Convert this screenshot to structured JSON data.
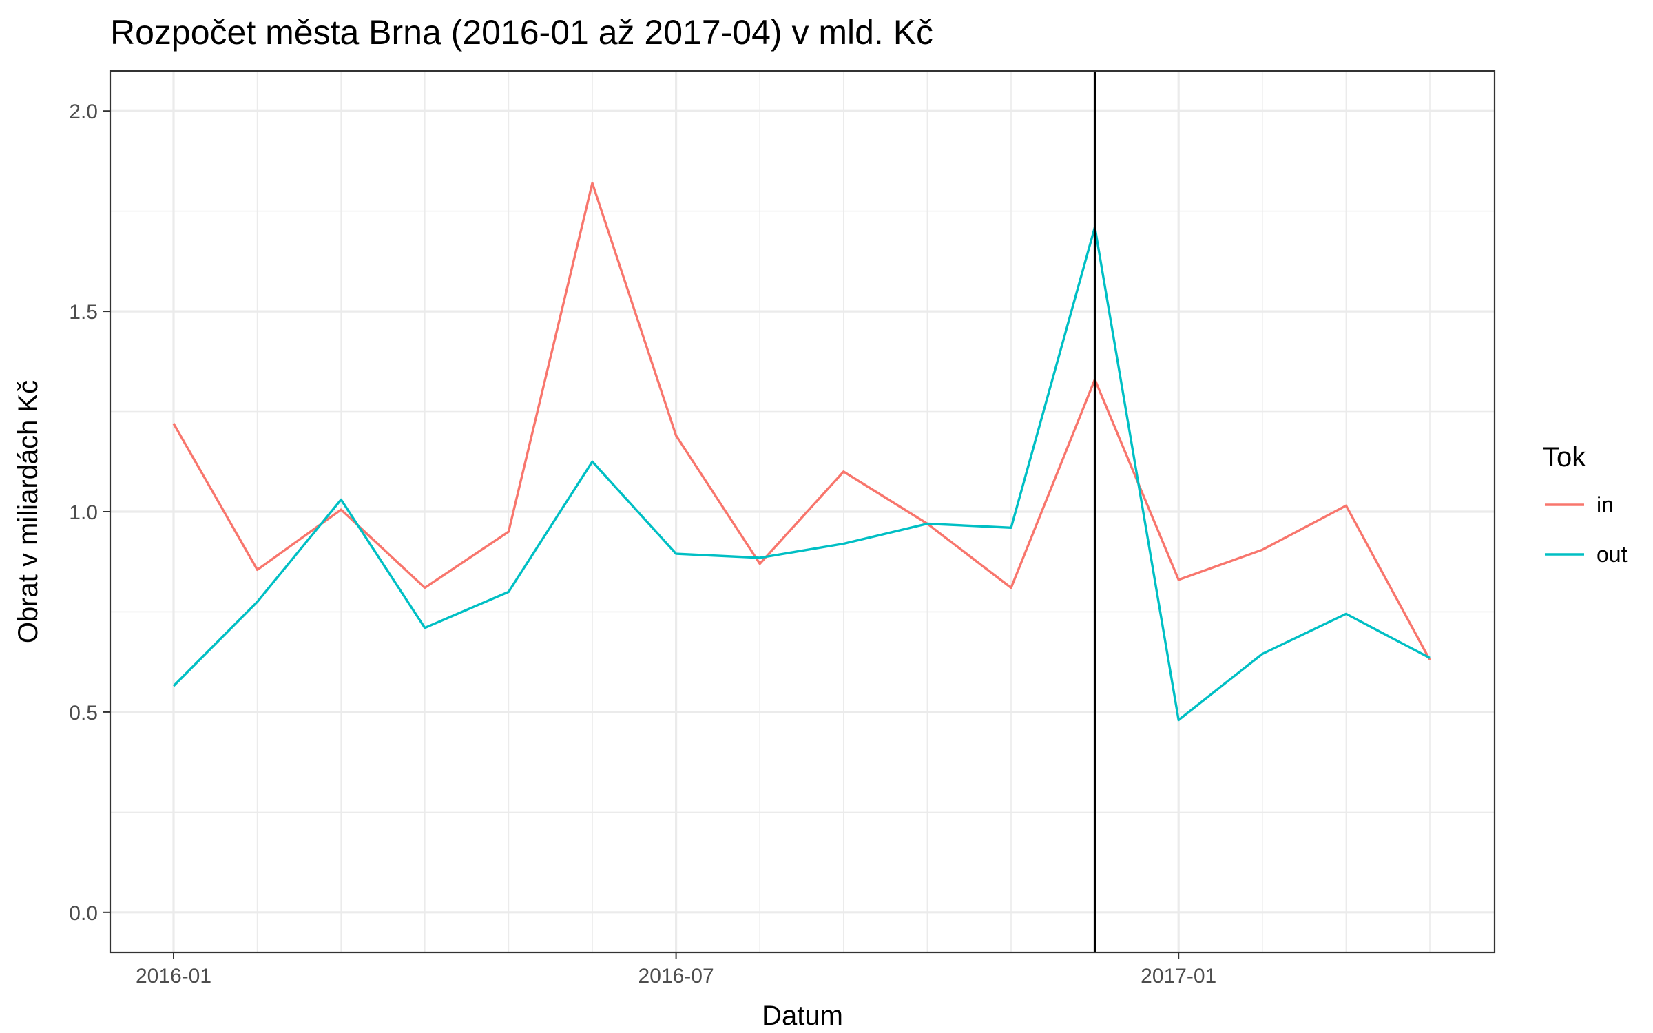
{
  "chart_data": {
    "type": "line",
    "title": "Rozpočet města Brna (2016-01 až 2017-04) v mld. Kč",
    "xlabel": "Datum",
    "ylabel": "Obrat v miliardách Kč",
    "x": [
      "2016-01",
      "2016-02",
      "2016-03",
      "2016-04",
      "2016-05",
      "2016-06",
      "2016-07",
      "2016-08",
      "2016-09",
      "2016-10",
      "2016-11",
      "2016-12",
      "2017-01",
      "2017-02",
      "2017-03",
      "2017-04"
    ],
    "x_ticks": [
      "2016-01",
      "2016-07",
      "2017-01"
    ],
    "y_ticks": [
      0.0,
      0.5,
      1.0,
      1.5,
      2.0
    ],
    "y_tick_labels": [
      "0.0",
      "0.5",
      "1.0",
      "1.5",
      "2.0"
    ],
    "ylim": [
      -0.1,
      2.1
    ],
    "grid": true,
    "vline_x": "2016-12",
    "legend": {
      "title": "Tok",
      "position": "right"
    },
    "series": [
      {
        "name": "in",
        "color": "#F8766D",
        "values": [
          1.22,
          0.855,
          1.005,
          0.81,
          0.95,
          1.82,
          1.19,
          0.87,
          1.1,
          0.97,
          0.81,
          1.33,
          0.83,
          0.905,
          1.015,
          0.63
        ]
      },
      {
        "name": "out",
        "color": "#00BFC4",
        "values": [
          0.565,
          0.775,
          1.03,
          0.71,
          0.8,
          1.125,
          0.895,
          0.885,
          0.92,
          0.97,
          0.96,
          1.71,
          0.48,
          0.645,
          0.745,
          0.635
        ]
      }
    ]
  }
}
